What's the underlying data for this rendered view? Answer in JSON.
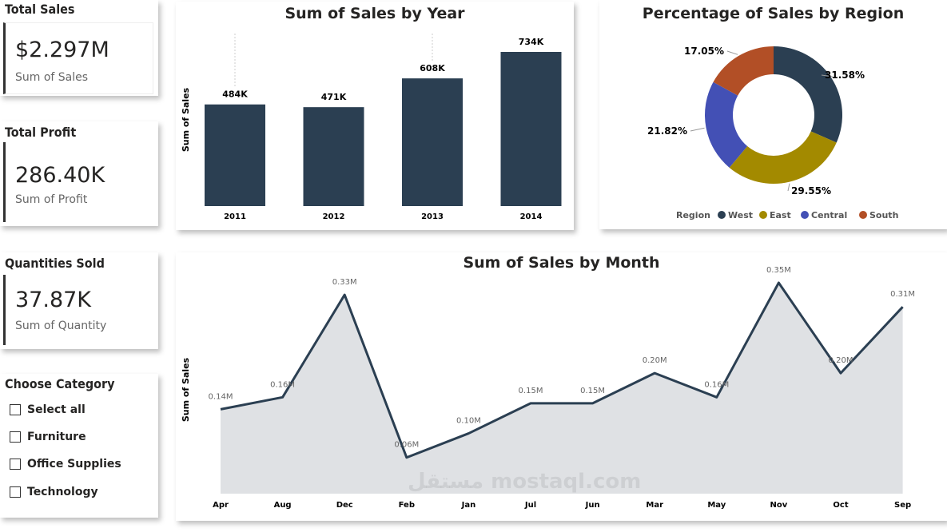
{
  "kpis": [
    {
      "title": "Total Sales",
      "value": "$2.297M",
      "label": "Sum of Sales"
    },
    {
      "title": "Total Profit",
      "value": "286.40K",
      "label": "Sum of Profit"
    },
    {
      "title": "Quantities Sold",
      "value": "37.87K",
      "label": "Sum of Quantity"
    }
  ],
  "slicer": {
    "title": "Choose Category",
    "items": [
      "Select all",
      "Furniture",
      "Office Supplies",
      "Technology"
    ]
  },
  "watermark": "مستقل mostaql.com",
  "chart_data": [
    {
      "type": "bar",
      "title": "Sum of Sales by Year",
      "ylabel": "Sum of Sales",
      "xlabel": "",
      "categories": [
        "2011",
        "2012",
        "2013",
        "2014"
      ],
      "values": [
        484,
        471,
        608,
        734
      ],
      "data_labels": [
        "484K",
        "471K",
        "608K",
        "734K"
      ],
      "color": "#2b3f52",
      "ylim": [
        0,
        734
      ]
    },
    {
      "type": "pie",
      "title": "Percentage of Sales by Region",
      "donut": true,
      "legend_title": "Region",
      "legend_position": "bottom",
      "categories": [
        "West",
        "East",
        "Central",
        "South"
      ],
      "values": [
        31.58,
        29.55,
        21.82,
        17.05
      ],
      "data_labels": [
        "31.58%",
        "29.55%",
        "21.82%",
        "17.05%"
      ],
      "colors": [
        "#2b3f52",
        "#a38a00",
        "#4350b5",
        "#b24f26"
      ]
    },
    {
      "type": "area",
      "title": "Sum of Sales by Month",
      "ylabel": "Sum of Sales",
      "xlabel": "",
      "categories": [
        "Apr",
        "Aug",
        "Dec",
        "Feb",
        "Jan",
        "Jul",
        "Jun",
        "Mar",
        "May",
        "Nov",
        "Oct",
        "Sep"
      ],
      "values": [
        0.14,
        0.16,
        0.33,
        0.06,
        0.1,
        0.15,
        0.15,
        0.2,
        0.16,
        0.35,
        0.2,
        0.31
      ],
      "data_labels": [
        "0.14M",
        "0.16M",
        "0.33M",
        "0.06M",
        "0.10M",
        "0.15M",
        "0.15M",
        "0.20M",
        "0.16M",
        "0.35M",
        "0.20M",
        "0.31M"
      ],
      "line_color": "#2b3f52",
      "fill_color": "#dfe1e4",
      "ylim": [
        0,
        0.35
      ]
    }
  ]
}
